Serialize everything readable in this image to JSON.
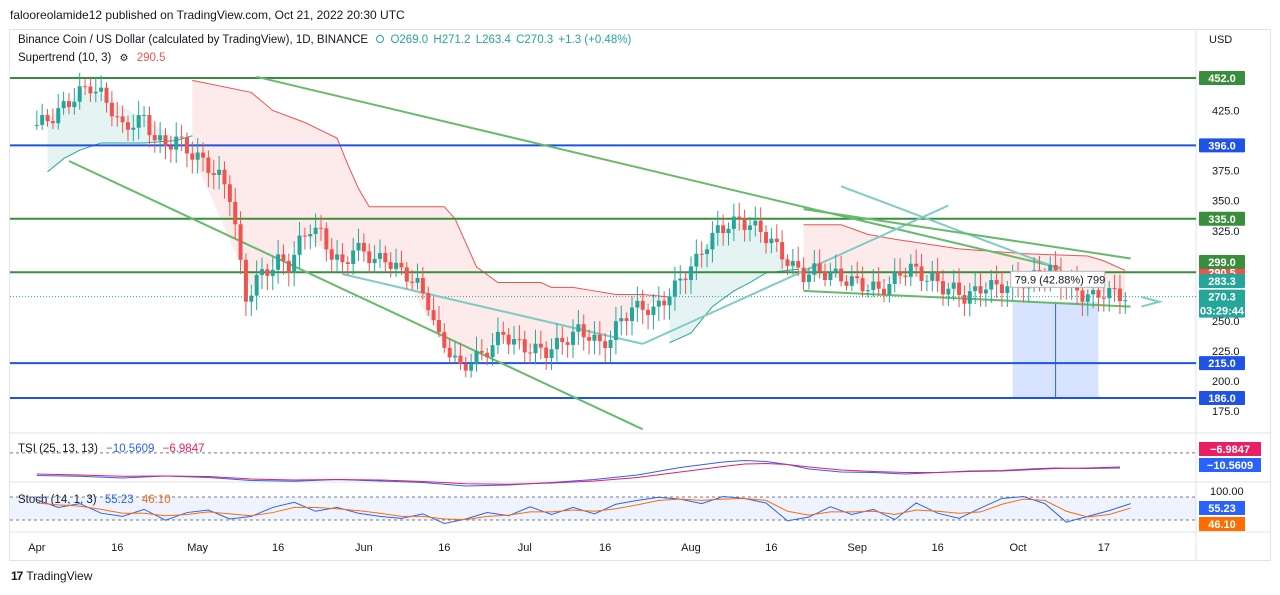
{
  "header": {
    "publisher_text": "falooreolamide12 published on TradingView.com, Oct 21, 2022 20:30 UTC"
  },
  "legend": {
    "symbol": "Binance Coin / US Dollar (calculated by TradingView), 1D, BINANCE",
    "open": "O269.0",
    "high": "H271.2",
    "low": "L263.4",
    "close": "C270.3",
    "change": "+1.3 (+0.48%)",
    "supertrend_label": "Supertrend (10, 3)",
    "supertrend_value": "290.5"
  },
  "tsi_legend": {
    "label": "TSI (25, 13, 13)",
    "v1": "−10.5609",
    "v2": "−6.9847"
  },
  "stoch_legend": {
    "label": "Stoch (14, 1, 3)",
    "v1": "55.23",
    "v2": "46.10"
  },
  "currency": "USD",
  "colors": {
    "up": "#26a69a",
    "down": "#ef5350",
    "green_line": "#388e3c",
    "blue_line": "#1e53e5",
    "trend_line": "#66bb6a",
    "channel_line": "#80cbc4",
    "tsi_blue": "#2962ff",
    "tsi_red": "#e91e63",
    "stoch_blue": "#2962ff",
    "stoch_orange": "#ff6d00"
  },
  "footer": {
    "brand": "TradingView",
    "logo": "17"
  },
  "measure_label": "79.9 (42.88%) 799",
  "chart_data": {
    "type": "candlestick",
    "price_axis_ticks": [
      {
        "v": 425,
        "label": "425.0"
      },
      {
        "v": 375,
        "label": "375.0"
      },
      {
        "v": 350,
        "label": "350.0"
      },
      {
        "v": 325,
        "label": "325.0"
      },
      {
        "v": 250,
        "label": "250.0"
      },
      {
        "v": 225,
        "label": "225.0"
      },
      {
        "v": 200,
        "label": "200.0"
      },
      {
        "v": 175,
        "label": "175.0"
      }
    ],
    "x_axis_labels": [
      {
        "label": "Apr",
        "d": 0
      },
      {
        "label": "16",
        "d": 15
      },
      {
        "label": "May",
        "d": 30
      },
      {
        "label": "16",
        "d": 45
      },
      {
        "label": "Jun",
        "d": 61
      },
      {
        "label": "16",
        "d": 76
      },
      {
        "label": "Jul",
        "d": 91
      },
      {
        "label": "16",
        "d": 106
      },
      {
        "label": "Aug",
        "d": 122
      },
      {
        "label": "16",
        "d": 137
      },
      {
        "label": "Sep",
        "d": 153
      },
      {
        "label": "16",
        "d": 168
      },
      {
        "label": "Oct",
        "d": 183
      },
      {
        "label": "17",
        "d": 199
      }
    ],
    "horizontal_levels": [
      {
        "value": 452.0,
        "label": "452.0",
        "color": "#388e3c"
      },
      {
        "value": 396.0,
        "label": "396.0",
        "color": "#1e53e5"
      },
      {
        "value": 335.0,
        "label": "335.0",
        "color": "#388e3c"
      },
      {
        "value": 290.5,
        "label": "290.5",
        "color": "#ef5350",
        "line": "green"
      },
      {
        "value": 215.0,
        "label": "215.0",
        "color": "#1e53e5"
      },
      {
        "value": 186.0,
        "label": "186.0",
        "color": "#1e53e5"
      }
    ],
    "price_badges": [
      {
        "value": 299.0,
        "label": "299.0",
        "color": "#388e3c"
      },
      {
        "value": 283.3,
        "label": "283.3",
        "color": "#26a69a"
      },
      {
        "value": 270.3,
        "label": "270.3",
        "sub": "03:29:44",
        "color": "#26a69a"
      }
    ],
    "tsi_badges": [
      {
        "v": -6.9847,
        "label": "−6.9847",
        "color": "#e91e63"
      },
      {
        "v": -10.5609,
        "label": "−10.5609",
        "color": "#2962ff"
      }
    ],
    "stoch_axis": [
      {
        "v": 100,
        "label": "100.00"
      }
    ],
    "stoch_badges": [
      {
        "v": 55.23,
        "label": "55.23",
        "color": "#2962ff"
      },
      {
        "v": 46.1,
        "label": "46.10",
        "color": "#ff6d00"
      }
    ],
    "trend_segments": [
      {
        "p": [
          [
            41,
            453
          ],
          [
            191,
            294
          ]
        ],
        "color": "#66bb6a"
      },
      {
        "p": [
          [
            6,
            383
          ],
          [
            113,
            160
          ]
        ],
        "color": "#66bb6a"
      },
      {
        "p": [
          [
            57,
            289
          ],
          [
            113,
            231
          ]
        ],
        "color": "#80cbc4"
      },
      {
        "p": [
          [
            113,
            231
          ],
          [
            170,
            346
          ]
        ],
        "color": "#80cbc4"
      },
      {
        "p": [
          [
            150,
            362
          ],
          [
            191,
            293
          ]
        ],
        "color": "#80cbc4"
      },
      {
        "p": [
          [
            143,
            343
          ],
          [
            204,
            302
          ]
        ],
        "color": "#66bb6a"
      },
      {
        "p": [
          [
            143,
            275
          ],
          [
            204,
            262
          ]
        ],
        "color": "#66bb6a"
      }
    ],
    "price_path": [
      [
        0,
        413
      ],
      [
        3,
        420
      ],
      [
        6,
        432
      ],
      [
        8,
        440
      ],
      [
        10,
        445
      ],
      [
        12,
        438
      ],
      [
        14,
        426
      ],
      [
        16,
        410
      ],
      [
        18,
        415
      ],
      [
        20,
        418
      ],
      [
        22,
        402
      ],
      [
        24,
        395
      ],
      [
        26,
        402
      ],
      [
        28,
        392
      ],
      [
        30,
        386
      ],
      [
        32,
        378
      ],
      [
        34,
        370
      ],
      [
        36,
        355
      ],
      [
        37,
        330
      ],
      [
        38,
        295
      ],
      [
        39,
        268
      ],
      [
        41,
        285
      ],
      [
        43,
        292
      ],
      [
        45,
        300
      ],
      [
        47,
        296
      ],
      [
        49,
        315
      ],
      [
        51,
        328
      ],
      [
        53,
        322
      ],
      [
        55,
        305
      ],
      [
        57,
        296
      ],
      [
        59,
        310
      ],
      [
        61,
        308
      ],
      [
        63,
        300
      ],
      [
        65,
        302
      ],
      [
        67,
        294
      ],
      [
        69,
        288
      ],
      [
        71,
        280
      ],
      [
        73,
        265
      ],
      [
        75,
        235
      ],
      [
        77,
        225
      ],
      [
        79,
        210
      ],
      [
        81,
        217
      ],
      [
        83,
        222
      ],
      [
        85,
        230
      ],
      [
        87,
        240
      ],
      [
        89,
        232
      ],
      [
        91,
        228
      ],
      [
        93,
        226
      ],
      [
        95,
        225
      ],
      [
        97,
        230
      ],
      [
        99,
        236
      ],
      [
        101,
        242
      ],
      [
        103,
        238
      ],
      [
        105,
        230
      ],
      [
        107,
        236
      ],
      [
        109,
        252
      ],
      [
        111,
        260
      ],
      [
        113,
        262
      ],
      [
        115,
        258
      ],
      [
        117,
        268
      ],
      [
        119,
        278
      ],
      [
        121,
        290
      ],
      [
        123,
        300
      ],
      [
        125,
        315
      ],
      [
        127,
        325
      ],
      [
        129,
        330
      ],
      [
        131,
        333
      ],
      [
        133,
        330
      ],
      [
        135,
        325
      ],
      [
        137,
        316
      ],
      [
        139,
        305
      ],
      [
        141,
        295
      ],
      [
        143,
        288
      ],
      [
        145,
        292
      ],
      [
        147,
        290
      ],
      [
        149,
        288
      ],
      [
        151,
        284
      ],
      [
        153,
        282
      ],
      [
        155,
        278
      ],
      [
        157,
        276
      ],
      [
        159,
        280
      ],
      [
        161,
        290
      ],
      [
        163,
        294
      ],
      [
        165,
        288
      ],
      [
        167,
        285
      ],
      [
        169,
        278
      ],
      [
        171,
        276
      ],
      [
        173,
        270
      ],
      [
        175,
        274
      ],
      [
        177,
        280
      ],
      [
        179,
        278
      ],
      [
        181,
        280
      ],
      [
        183,
        282
      ],
      [
        185,
        284
      ],
      [
        187,
        290
      ],
      [
        189,
        292
      ],
      [
        191,
        285
      ],
      [
        193,
        278
      ],
      [
        195,
        272
      ],
      [
        197,
        270
      ],
      [
        199,
        274
      ],
      [
        201,
        273
      ],
      [
        203,
        270
      ]
    ],
    "supertrend_down": [
      [
        [
          29,
          450
        ],
        [
          40,
          440
        ],
        [
          44,
          425
        ],
        [
          50,
          415
        ],
        [
          56,
          402
        ],
        [
          58,
          380
        ],
        [
          60,
          360
        ],
        [
          62,
          345
        ],
        [
          68,
          345
        ],
        [
          76,
          345
        ],
        [
          78,
          335
        ],
        [
          80,
          315
        ],
        [
          82,
          295
        ],
        [
          86,
          282
        ],
        [
          90,
          282
        ],
        [
          94,
          282
        ],
        [
          96,
          278
        ],
        [
          100,
          278
        ],
        [
          104,
          275
        ],
        [
          108,
          272
        ],
        [
          113,
          272
        ],
        [
          118,
          270
        ]
      ],
      [
        [
          143,
          330
        ],
        [
          150,
          330
        ],
        [
          155,
          322
        ],
        [
          160,
          318
        ],
        [
          166,
          314
        ],
        [
          172,
          310
        ],
        [
          178,
          308
        ],
        [
          184,
          306
        ],
        [
          190,
          305
        ],
        [
          196,
          304
        ],
        [
          199,
          300
        ],
        [
          203,
          292
        ]
      ]
    ],
    "supertrend_up": [
      [
        [
          2,
          374
        ],
        [
          5,
          385
        ],
        [
          8,
          392
        ],
        [
          12,
          398
        ],
        [
          20,
          398
        ],
        [
          26,
          400
        ],
        [
          29,
          404
        ]
      ],
      [
        [
          118,
          232
        ],
        [
          122,
          240
        ],
        [
          126,
          262
        ],
        [
          130,
          275
        ],
        [
          133,
          282
        ],
        [
          136,
          290
        ],
        [
          142,
          293
        ]
      ]
    ],
    "measure_box": {
      "d0": 182,
      "d1": 198,
      "v0": 186,
      "v1": 266
    },
    "tsi": [
      [
        0,
        -42
      ],
      [
        8,
        -45
      ],
      [
        16,
        -52
      ],
      [
        24,
        -44
      ],
      [
        32,
        -50
      ],
      [
        40,
        -62
      ],
      [
        48,
        -65
      ],
      [
        56,
        -58
      ],
      [
        64,
        -64
      ],
      [
        72,
        -70
      ],
      [
        80,
        -84
      ],
      [
        88,
        -80
      ],
      [
        96,
        -70
      ],
      [
        104,
        -58
      ],
      [
        112,
        -40
      ],
      [
        120,
        -10
      ],
      [
        128,
        12
      ],
      [
        132,
        18
      ],
      [
        136,
        14
      ],
      [
        140,
        2
      ],
      [
        144,
        -16
      ],
      [
        150,
        -28
      ],
      [
        156,
        -30
      ],
      [
        162,
        -36
      ],
      [
        168,
        -30
      ],
      [
        174,
        -24
      ],
      [
        180,
        -22
      ],
      [
        186,
        -15
      ],
      [
        190,
        -12
      ],
      [
        196,
        -14
      ],
      [
        202,
        -12
      ]
    ],
    "tsi_signal": [
      [
        0,
        -36
      ],
      [
        8,
        -40
      ],
      [
        16,
        -45
      ],
      [
        24,
        -44
      ],
      [
        32,
        -46
      ],
      [
        40,
        -56
      ],
      [
        48,
        -60
      ],
      [
        56,
        -58
      ],
      [
        64,
        -60
      ],
      [
        72,
        -66
      ],
      [
        80,
        -75
      ],
      [
        88,
        -77
      ],
      [
        96,
        -72
      ],
      [
        104,
        -64
      ],
      [
        112,
        -50
      ],
      [
        120,
        -28
      ],
      [
        128,
        -6
      ],
      [
        132,
        4
      ],
      [
        136,
        6
      ],
      [
        140,
        2
      ],
      [
        144,
        -8
      ],
      [
        150,
        -20
      ],
      [
        156,
        -26
      ],
      [
        162,
        -30
      ],
      [
        168,
        -30
      ],
      [
        174,
        -26
      ],
      [
        180,
        -24
      ],
      [
        186,
        -18
      ],
      [
        190,
        -14
      ],
      [
        196,
        -12
      ],
      [
        202,
        -8
      ]
    ],
    "stoch_k": [
      [
        0,
        82
      ],
      [
        4,
        58
      ],
      [
        8,
        70
      ],
      [
        12,
        40
      ],
      [
        16,
        30
      ],
      [
        20,
        52
      ],
      [
        24,
        18
      ],
      [
        28,
        42
      ],
      [
        32,
        50
      ],
      [
        36,
        22
      ],
      [
        40,
        30
      ],
      [
        44,
        58
      ],
      [
        48,
        74
      ],
      [
        52,
        46
      ],
      [
        56,
        58
      ],
      [
        60,
        40
      ],
      [
        64,
        30
      ],
      [
        68,
        24
      ],
      [
        72,
        38
      ],
      [
        76,
        8
      ],
      [
        80,
        22
      ],
      [
        84,
        42
      ],
      [
        88,
        32
      ],
      [
        92,
        60
      ],
      [
        96,
        36
      ],
      [
        100,
        58
      ],
      [
        104,
        38
      ],
      [
        108,
        68
      ],
      [
        112,
        80
      ],
      [
        116,
        90
      ],
      [
        120,
        84
      ],
      [
        124,
        70
      ],
      [
        128,
        92
      ],
      [
        132,
        86
      ],
      [
        136,
        72
      ],
      [
        140,
        16
      ],
      [
        144,
        28
      ],
      [
        148,
        60
      ],
      [
        152,
        36
      ],
      [
        156,
        52
      ],
      [
        160,
        20
      ],
      [
        164,
        72
      ],
      [
        168,
        40
      ],
      [
        172,
        24
      ],
      [
        176,
        56
      ],
      [
        180,
        86
      ],
      [
        184,
        92
      ],
      [
        188,
        70
      ],
      [
        192,
        12
      ],
      [
        196,
        30
      ],
      [
        200,
        48
      ],
      [
        204,
        70
      ]
    ],
    "stoch_d": [
      [
        0,
        72
      ],
      [
        4,
        66
      ],
      [
        8,
        62
      ],
      [
        12,
        52
      ],
      [
        16,
        40
      ],
      [
        20,
        40
      ],
      [
        24,
        32
      ],
      [
        28,
        36
      ],
      [
        32,
        44
      ],
      [
        36,
        38
      ],
      [
        40,
        32
      ],
      [
        44,
        42
      ],
      [
        48,
        58
      ],
      [
        52,
        58
      ],
      [
        56,
        54
      ],
      [
        60,
        48
      ],
      [
        64,
        40
      ],
      [
        68,
        30
      ],
      [
        72,
        30
      ],
      [
        76,
        22
      ],
      [
        80,
        20
      ],
      [
        84,
        30
      ],
      [
        88,
        34
      ],
      [
        92,
        44
      ],
      [
        96,
        44
      ],
      [
        100,
        50
      ],
      [
        104,
        46
      ],
      [
        108,
        54
      ],
      [
        112,
        66
      ],
      [
        116,
        80
      ],
      [
        120,
        84
      ],
      [
        124,
        80
      ],
      [
        128,
        84
      ],
      [
        132,
        86
      ],
      [
        136,
        80
      ],
      [
        140,
        46
      ],
      [
        144,
        34
      ],
      [
        148,
        44
      ],
      [
        152,
        44
      ],
      [
        156,
        46
      ],
      [
        160,
        36
      ],
      [
        164,
        50
      ],
      [
        168,
        46
      ],
      [
        172,
        40
      ],
      [
        176,
        44
      ],
      [
        180,
        68
      ],
      [
        184,
        84
      ],
      [
        188,
        80
      ],
      [
        192,
        46
      ],
      [
        196,
        28
      ],
      [
        200,
        36
      ],
      [
        204,
        56
      ]
    ]
  }
}
